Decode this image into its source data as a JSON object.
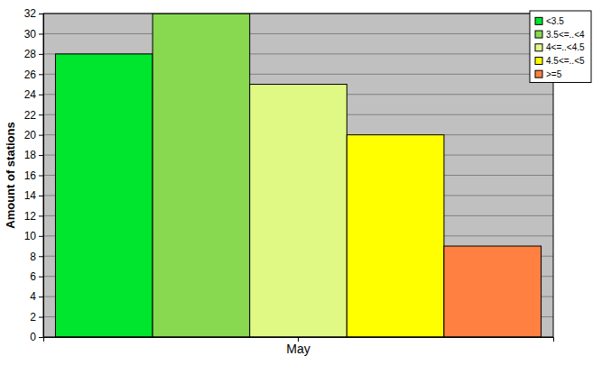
{
  "chart_data": {
    "type": "bar",
    "y_label": "Amount of stations",
    "categories": [
      "May"
    ],
    "series": [
      {
        "name": "<3.5",
        "color": "#00e62e",
        "values": [
          28
        ]
      },
      {
        "name": "3.5<=..<4",
        "color": "#88d850",
        "values": [
          32
        ]
      },
      {
        "name": "4<=..<4.5",
        "color": "#e0f884",
        "values": [
          25
        ]
      },
      {
        "name": "4.5<=..<5",
        "color": "#ffff00",
        "values": [
          20
        ]
      },
      {
        "name": ">=5",
        "color": "#ff8040",
        "values": [
          9
        ]
      }
    ],
    "ylim": [
      0,
      32
    ],
    "yticks": [
      0,
      2,
      4,
      6,
      8,
      10,
      12,
      14,
      16,
      18,
      20,
      22,
      24,
      26,
      28,
      30,
      32
    ],
    "grid": true,
    "legend": "top-right"
  }
}
